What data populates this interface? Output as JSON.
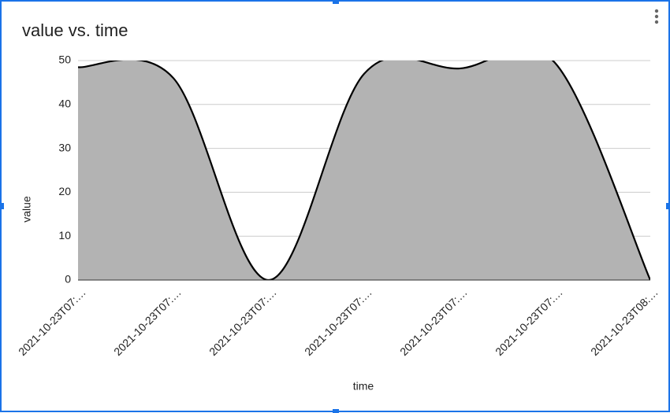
{
  "chart_data": {
    "type": "area",
    "title": "value vs. time",
    "x_label": "time",
    "y_label": "value",
    "categories": [
      "2021-10-23T07:…",
      "2021-10-23T07:…",
      "2021-10-23T07:…",
      "2021-10-23T07:…",
      "2021-10-23T07:…",
      "2021-10-23T07:…",
      "2021-10-23T08:…"
    ],
    "values": [
      48.5,
      46,
      0,
      47,
      48.2,
      49.5,
      0
    ],
    "color": "#b3b3b3",
    "line_color": "#000000",
    "ylim": [
      0,
      50
    ],
    "yticks": [
      0,
      10,
      20,
      30,
      40,
      50
    ],
    "grid": true,
    "smooth": true
  }
}
